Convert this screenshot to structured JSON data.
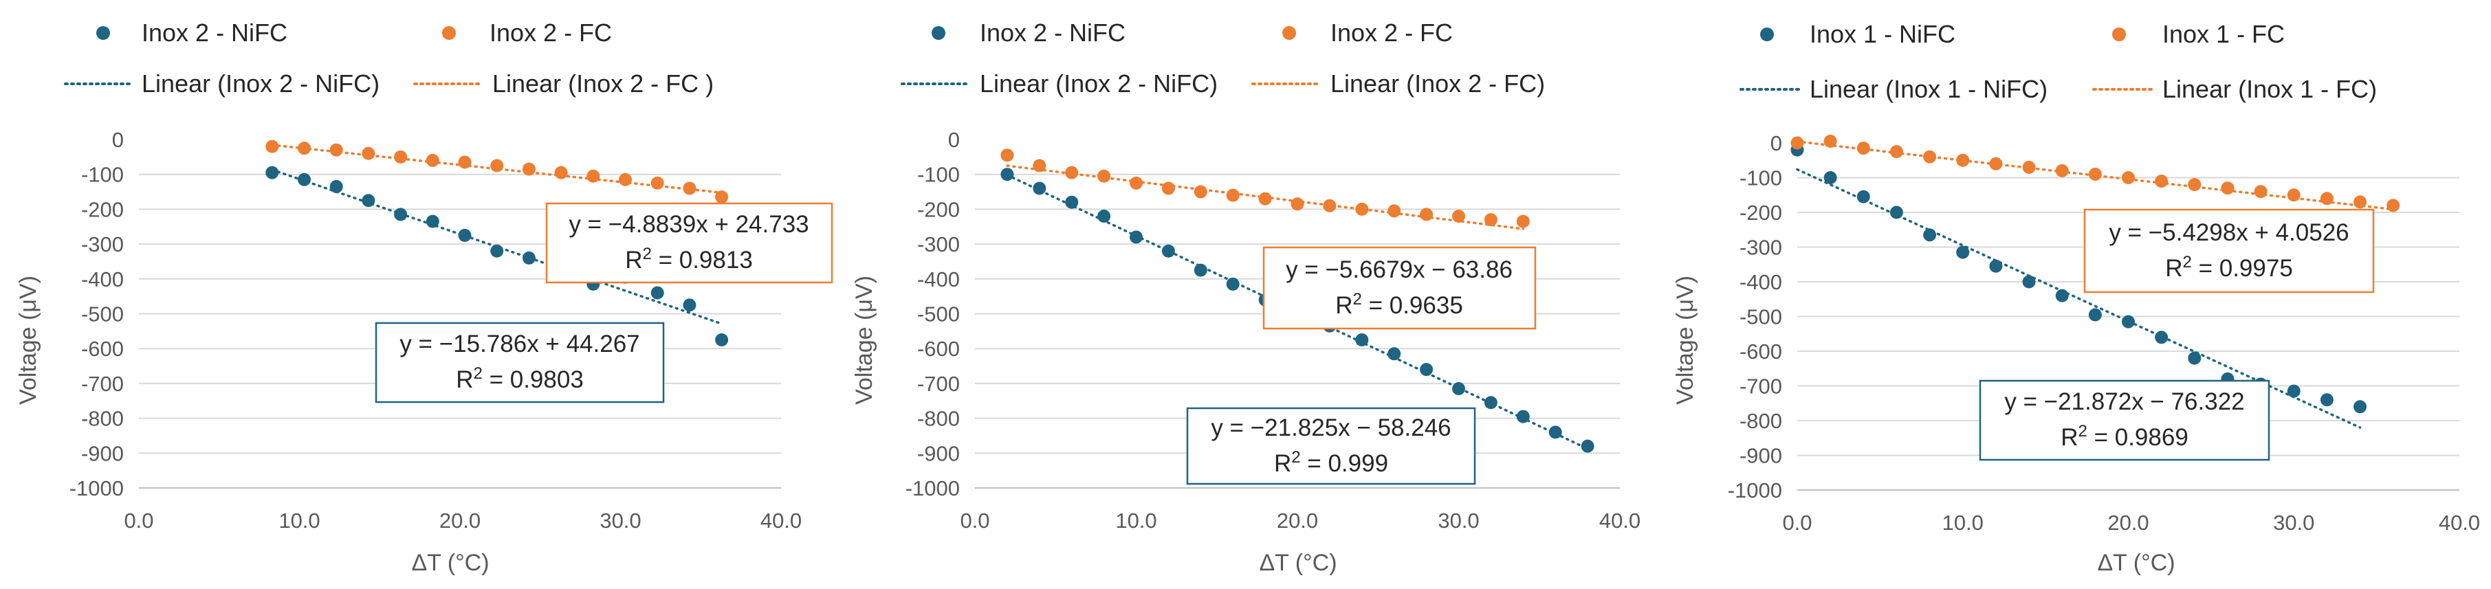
{
  "colors": {
    "nifc": "#1F6482",
    "fc": "#ED7D31",
    "grid": "#D9D9D9",
    "axis": "#BFBFBF",
    "text": "#595959"
  },
  "chart_data": [
    {
      "type": "scatter",
      "xlabel": "ΔT (°C)",
      "ylabel": "Voltage (μV)",
      "xlim": [
        0,
        40
      ],
      "ylim": [
        -1000,
        0
      ],
      "x_ticks": [
        "0.0",
        "10.0",
        "20.0",
        "30.0",
        "40.0"
      ],
      "y_ticks": [
        "0",
        "-100",
        "-200",
        "-300",
        "-400",
        "-500",
        "-600",
        "-700",
        "-800",
        "-900",
        "-1000"
      ],
      "legend": [
        "Inox 2 - NiFC",
        "Inox 2 - FC",
        "Linear (Inox 2 - NiFC)",
        "Linear (Inox 2 - FC )"
      ],
      "series": [
        {
          "name": "Inox 2 - NiFC",
          "color": "#1F6482",
          "x": [
            8.3,
            10.3,
            12.3,
            14.3,
            16.3,
            18.3,
            20.3,
            22.3,
            24.3,
            26.3,
            28.3,
            30.3,
            32.3,
            34.3,
            36.3
          ],
          "y": [
            -95,
            -115,
            -135,
            -175,
            -215,
            -235,
            -275,
            -320,
            -340,
            -375,
            -415,
            -395,
            -440,
            -475,
            -575
          ],
          "trend": {
            "slope": -15.786,
            "intercept": 44.267,
            "x_range": [
              8.3,
              36.3
            ]
          },
          "equation": "y = −15.786x + 44.267",
          "r2": "R2 = 0.9803"
        },
        {
          "name": "Inox 2 - FC",
          "color": "#ED7D31",
          "x": [
            8.3,
            10.3,
            12.3,
            14.3,
            16.3,
            18.3,
            20.3,
            22.3,
            24.3,
            26.3,
            28.3,
            30.3,
            32.3,
            34.3,
            36.3
          ],
          "y": [
            -20,
            -25,
            -30,
            -40,
            -50,
            -60,
            -65,
            -75,
            -85,
            -95,
            -105,
            -115,
            -125,
            -140,
            -165
          ],
          "trend": {
            "slope": -4.8839,
            "intercept": 24.733,
            "x_range": [
              8.3,
              36.3
            ]
          },
          "equation": "y = −4.8839x + 24.733",
          "r2": "R2 = 0.9813"
        }
      ]
    },
    {
      "type": "scatter",
      "xlabel": "ΔT (°C)",
      "ylabel": "Voltage (μV)",
      "xlim": [
        0,
        40
      ],
      "ylim": [
        -1000,
        0
      ],
      "x_ticks": [
        "0.0",
        "10.0",
        "20.0",
        "30.0",
        "40.0"
      ],
      "y_ticks": [
        "0",
        "-100",
        "-200",
        "-300",
        "-400",
        "-500",
        "-600",
        "-700",
        "-800",
        "-900",
        "-1000"
      ],
      "legend": [
        "Inox 2 - NiFC",
        "Inox 2 - FC",
        "Linear (Inox 2 - NiFC)",
        "Linear (Inox 2 - FC)"
      ],
      "series": [
        {
          "name": "Inox 2 - NiFC",
          "color": "#1F6482",
          "x": [
            2,
            4,
            6,
            8,
            10,
            12,
            14,
            16,
            18,
            20,
            22,
            24,
            26,
            28,
            30,
            32,
            34,
            36,
            38
          ],
          "y": [
            -100,
            -140,
            -180,
            -220,
            -280,
            -320,
            -375,
            -415,
            -460,
            -500,
            -535,
            -575,
            -615,
            -660,
            -715,
            -755,
            -795,
            -840,
            -880
          ],
          "trend": {
            "slope": -21.825,
            "intercept": -58.246,
            "x_range": [
              2,
              38
            ]
          },
          "equation": "y = −21.825x − 58.246",
          "r2": "R2 = 0.999"
        },
        {
          "name": "Inox 2 - FC",
          "color": "#ED7D31",
          "x": [
            2,
            4,
            6,
            8,
            10,
            12,
            14,
            16,
            18,
            20,
            22,
            24,
            26,
            28,
            30,
            32,
            34
          ],
          "y": [
            -45,
            -75,
            -95,
            -105,
            -125,
            -140,
            -150,
            -160,
            -170,
            -185,
            -190,
            -200,
            -205,
            -215,
            -220,
            -230,
            -235
          ],
          "trend": {
            "slope": -5.6679,
            "intercept": -63.86,
            "x_range": [
              2,
              34
            ]
          },
          "equation": "y = −5.6679x − 63.86",
          "r2": "R2 = 0.9635"
        }
      ]
    },
    {
      "type": "scatter",
      "xlabel": "ΔT (°C)",
      "ylabel": "Voltage (μV)",
      "xlim": [
        0,
        40
      ],
      "ylim": [
        -1000,
        0
      ],
      "x_ticks": [
        "0.0",
        "10.0",
        "20.0",
        "30.0",
        "40.0"
      ],
      "y_ticks": [
        "0",
        "-100",
        "-200",
        "-300",
        "-400",
        "-500",
        "-600",
        "-700",
        "-800",
        "-900",
        "-1000"
      ],
      "legend": [
        "Inox 1 - NiFC",
        "Inox 1 - FC",
        "Linear (Inox 1 - NiFC)",
        "Linear (Inox 1 - FC)"
      ],
      "series": [
        {
          "name": "Inox 1 - NiFC",
          "color": "#1F6482",
          "x": [
            0,
            2,
            4,
            6,
            8,
            10,
            12,
            14,
            16,
            18,
            20,
            22,
            24,
            26,
            28,
            30,
            32,
            34
          ],
          "y": [
            -20,
            -100,
            -155,
            -200,
            -265,
            -315,
            -355,
            -400,
            -440,
            -495,
            -515,
            -560,
            -620,
            -680,
            -695,
            -715,
            -740,
            -760
          ],
          "trend": {
            "slope": -21.872,
            "intercept": -76.322,
            "x_range": [
              0,
              34
            ]
          },
          "equation": "y = −21.872x − 76.322",
          "r2": "R2 = 0.9869"
        },
        {
          "name": "Inox 1 - FC",
          "color": "#ED7D31",
          "x": [
            0,
            2,
            4,
            6,
            8,
            10,
            12,
            14,
            16,
            18,
            20,
            22,
            24,
            26,
            28,
            30,
            32,
            34,
            36
          ],
          "y": [
            0,
            5,
            -15,
            -25,
            -40,
            -50,
            -60,
            -70,
            -80,
            -90,
            -100,
            -110,
            -120,
            -130,
            -140,
            -150,
            -160,
            -170,
            -180
          ],
          "trend": {
            "slope": -5.4298,
            "intercept": 4.0526,
            "x_range": [
              0,
              36
            ]
          },
          "equation": "y = −5.4298x + 4.0526",
          "r2": "R2 = 0.9975"
        }
      ]
    }
  ]
}
